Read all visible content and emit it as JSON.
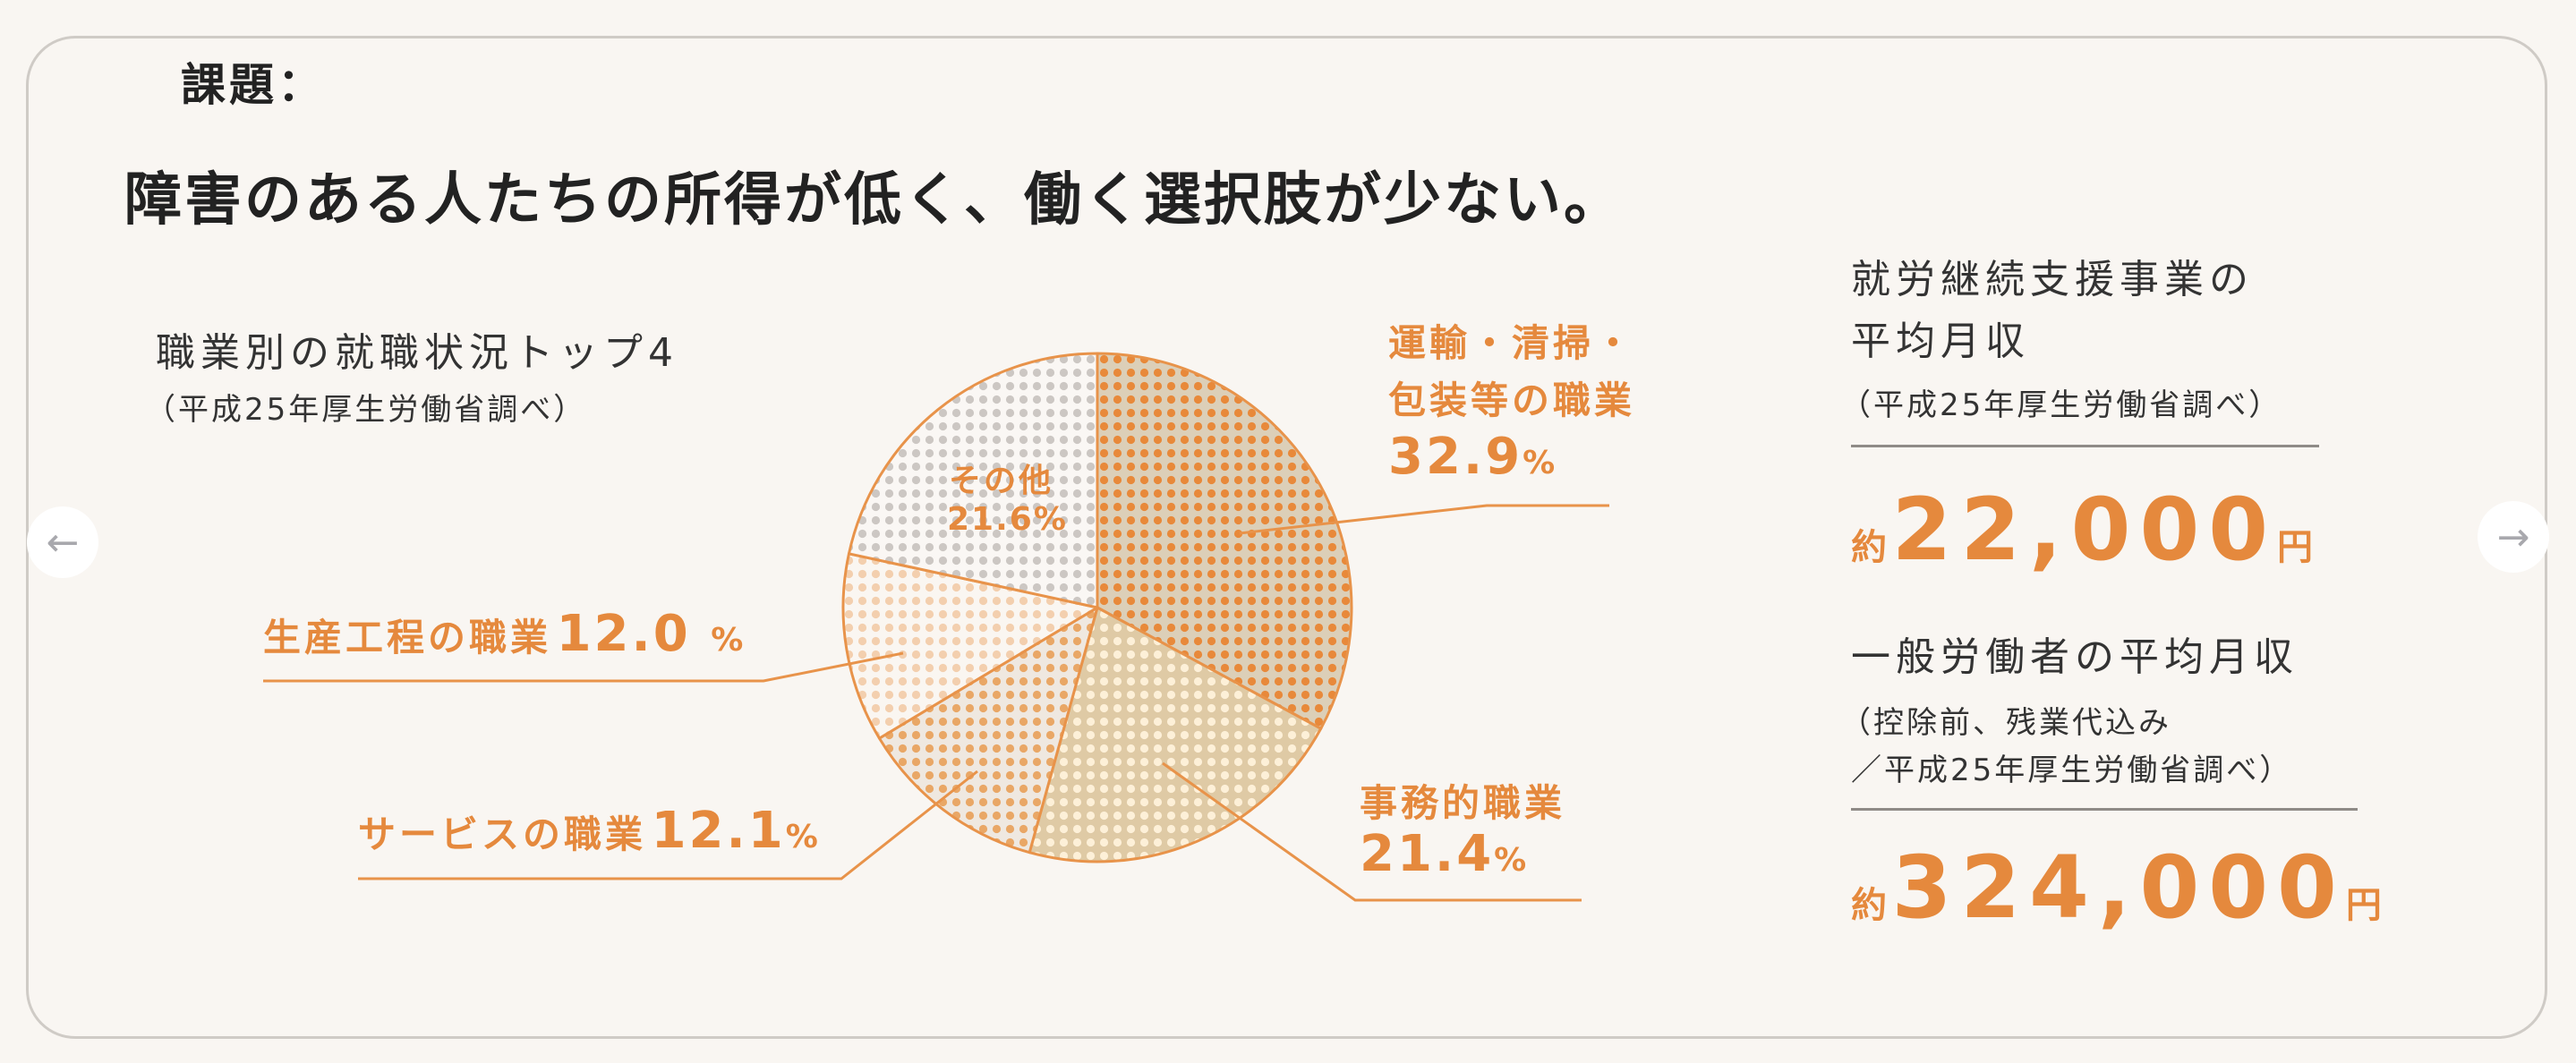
{
  "section_label": "課題：",
  "heading": "障害のある人たちの所得が低く、働く選択肢が少ない。",
  "chart_data": {
    "type": "pie",
    "title": "職業別の就職状況トップ4",
    "source": "（平成25年厚生労働省調べ）",
    "slices": [
      {
        "name": "運輸・清掃・包装等の職業",
        "label_line1": "運輸・清掃・",
        "label_line2": "包装等の職業",
        "value": 32.9,
        "value_label": "32.9",
        "bg": "#dccfb8",
        "dot": "#e8893a"
      },
      {
        "name": "事務的職業",
        "label_line1": "事務的職業",
        "value": 21.4,
        "value_label": "21.4",
        "bg": "#dfcaa5",
        "dot": "#fdf0d8"
      },
      {
        "name": "サービスの職業",
        "label_line1": "サービスの職業",
        "value": 12.1,
        "value_label": "12.1",
        "bg": "#efe8e0",
        "dot": "#e9a766"
      },
      {
        "name": "生産工程の職業",
        "label_line1": "生産工程の職業",
        "value": 12.0,
        "value_label": "12.0",
        "bg": "#faf6f1",
        "dot": "#f3cfae"
      },
      {
        "name": "その他",
        "label_line1": "その他",
        "value": 21.6,
        "value_label": "21.6%",
        "bg": "#faf7f4",
        "dot": "#ccc7c3"
      }
    ],
    "percent_sign": "%",
    "start": "top",
    "direction": "clockwise"
  },
  "right": {
    "block1": {
      "title_line1": "就労継続支援事業の",
      "title_line2": "平均月収",
      "note": "（平成25年厚生労働省調べ）",
      "prefix": "約",
      "amount": "22,000",
      "suffix": "円"
    },
    "block2": {
      "title_line1": "一般労働者の平均月収",
      "note_line1": "（控除前、残業代込み",
      "note_line2": "／平成25年厚生労働省調べ）",
      "prefix": "約",
      "amount": "324,000",
      "suffix": "円"
    }
  },
  "nav": {
    "prev_icon": "arrow-left-icon",
    "next_icon": "arrow-right-icon",
    "prev": "←",
    "next": "→"
  },
  "colors": {
    "accent": "#e5893d",
    "background": "#f9f6f2",
    "leader": "#e8934a"
  }
}
